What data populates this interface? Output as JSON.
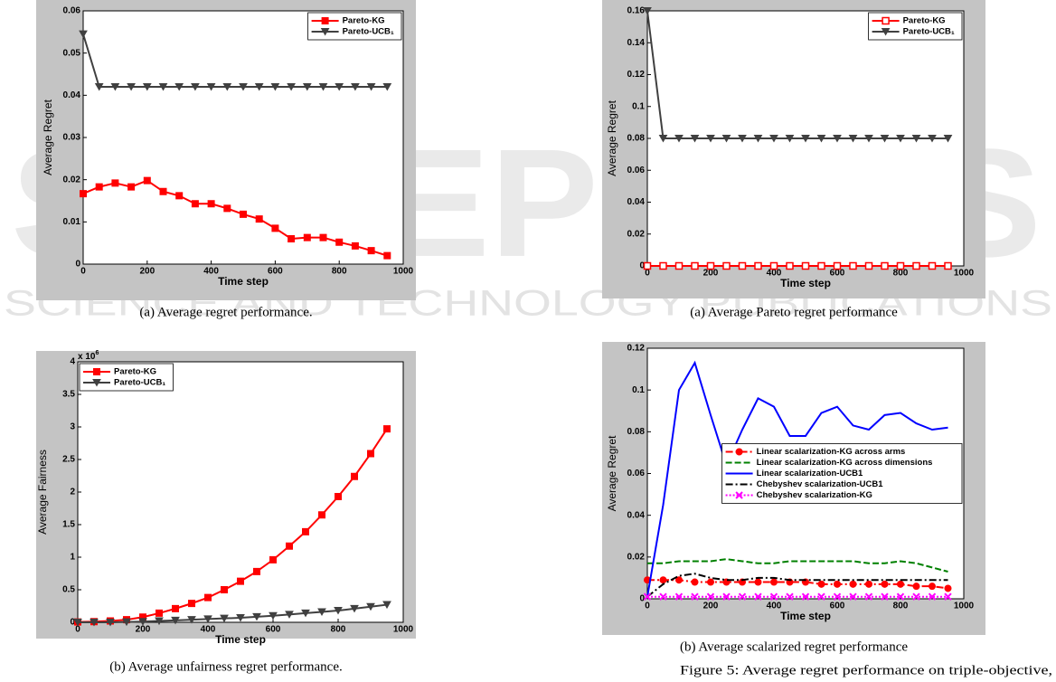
{
  "watermark": [
    "SCITEPRESS",
    "SCIENCE AND TECHNOLOGY PUBLICATIONS"
  ],
  "figure_caption": "Figure 5: Average regret performance on triple-objective,",
  "chart_data": [
    {
      "type": "line",
      "caption": "(a) Average regret performance.",
      "x_label": "Time step",
      "y_label": "Average Regret",
      "x": [
        0,
        50,
        100,
        150,
        200,
        250,
        300,
        350,
        400,
        450,
        500,
        550,
        600,
        650,
        700,
        750,
        800,
        850,
        900,
        950
      ],
      "xlim": [
        0,
        1000
      ],
      "xticks": [
        0,
        200,
        400,
        600,
        800,
        1000
      ],
      "ylim": [
        0,
        0.06
      ],
      "yticks": [
        0,
        0.01,
        0.02,
        0.03,
        0.04,
        0.05,
        0.06
      ],
      "legend": "upper right",
      "series": [
        {
          "name": "Pareto-KG",
          "color": "#ff0000",
          "marker": "square",
          "dash": "solid",
          "values": [
            0.0167,
            0.0183,
            0.0192,
            0.0183,
            0.0198,
            0.0172,
            0.0162,
            0.0143,
            0.0143,
            0.0132,
            0.0118,
            0.0107,
            0.0085,
            0.006,
            0.0063,
            0.0063,
            0.0052,
            0.0043,
            0.0032,
            0.002
          ]
        },
        {
          "name": "Pareto-UCB₁",
          "color": "#404040",
          "marker": "triangle-down",
          "dash": "solid",
          "values": [
            0.0545,
            0.042,
            0.042,
            0.042,
            0.042,
            0.042,
            0.042,
            0.042,
            0.042,
            0.042,
            0.042,
            0.042,
            0.042,
            0.042,
            0.042,
            0.042,
            0.042,
            0.042,
            0.042,
            0.042
          ]
        }
      ]
    },
    {
      "type": "line",
      "caption": "(a) Average Pareto regret performance",
      "x_label": "Time step",
      "y_label": "Average Regret",
      "x": [
        0,
        50,
        100,
        150,
        200,
        250,
        300,
        350,
        400,
        450,
        500,
        550,
        600,
        650,
        700,
        750,
        800,
        850,
        900,
        950
      ],
      "xlim": [
        0,
        1000
      ],
      "xticks": [
        0,
        200,
        400,
        600,
        800,
        1000
      ],
      "ylim": [
        0,
        0.16
      ],
      "yticks": [
        0,
        0.02,
        0.04,
        0.06,
        0.08,
        0.1,
        0.12,
        0.14,
        0.16
      ],
      "legend": "upper right",
      "series": [
        {
          "name": "Pareto-KG",
          "color": "#ff0000",
          "marker": "square-open",
          "dash": "solid",
          "values": [
            0,
            0,
            0,
            0,
            0,
            0,
            0,
            0,
            0,
            0,
            0,
            0,
            0,
            0,
            0,
            0,
            0,
            0,
            0,
            0
          ]
        },
        {
          "name": "Pareto-UCB₁",
          "color": "#404040",
          "marker": "triangle-down",
          "dash": "solid",
          "values": [
            0.16,
            0.08,
            0.08,
            0.08,
            0.08,
            0.08,
            0.08,
            0.08,
            0.08,
            0.08,
            0.08,
            0.08,
            0.08,
            0.08,
            0.08,
            0.08,
            0.08,
            0.08,
            0.08,
            0.08
          ]
        }
      ]
    },
    {
      "type": "line",
      "caption": "(b) Average unfairness regret performance.",
      "x_label": "Time step",
      "y_label": "Average Fairness",
      "y_multiplier": {
        "base": "x 10",
        "exponent": "6"
      },
      "x": [
        0,
        50,
        100,
        150,
        200,
        250,
        300,
        350,
        400,
        450,
        500,
        550,
        600,
        650,
        700,
        750,
        800,
        850,
        900,
        950
      ],
      "xlim": [
        0,
        1000
      ],
      "xticks": [
        0,
        200,
        400,
        600,
        800,
        1000
      ],
      "ylim": [
        0,
        4
      ],
      "yticks": [
        0,
        0.5,
        1,
        1.5,
        2,
        2.5,
        3,
        3.5,
        4
      ],
      "legend": "upper left",
      "series": [
        {
          "name": "Pareto-KG",
          "color": "#ff0000",
          "marker": "square",
          "dash": "solid",
          "values": [
            0.005,
            0.01,
            0.02,
            0.04,
            0.08,
            0.14,
            0.21,
            0.29,
            0.38,
            0.5,
            0.63,
            0.78,
            0.96,
            1.17,
            1.39,
            1.65,
            1.93,
            2.24,
            2.59,
            2.97
          ]
        },
        {
          "name": "Pareto-UCB₁",
          "color": "#404040",
          "marker": "triangle-down",
          "dash": "solid",
          "values": [
            0,
            0,
            0,
            0.005,
            0.01,
            0.02,
            0.03,
            0.04,
            0.05,
            0.06,
            0.07,
            0.085,
            0.1,
            0.12,
            0.14,
            0.16,
            0.18,
            0.21,
            0.24,
            0.27
          ]
        }
      ]
    },
    {
      "type": "line",
      "caption": "(b) Average scalarized regret performance",
      "x_label": "Time step",
      "y_label": "Average Regret",
      "x": [
        0,
        50,
        100,
        150,
        200,
        250,
        300,
        350,
        400,
        450,
        500,
        550,
        600,
        650,
        700,
        750,
        800,
        850,
        900,
        950
      ],
      "xlim": [
        0,
        1000
      ],
      "xticks": [
        0,
        200,
        400,
        600,
        800,
        1000
      ],
      "ylim": [
        0,
        0.12
      ],
      "yticks": [
        0,
        0.02,
        0.04,
        0.06,
        0.08,
        0.1,
        0.12
      ],
      "legend": "center right",
      "series": [
        {
          "name": "Linear scalarization-KG across arms",
          "color": "#ff0000",
          "marker": "circle",
          "dash": "dashdot",
          "values": [
            0.009,
            0.009,
            0.009,
            0.008,
            0.008,
            0.008,
            0.008,
            0.008,
            0.008,
            0.008,
            0.008,
            0.007,
            0.007,
            0.007,
            0.007,
            0.007,
            0.007,
            0.006,
            0.006,
            0.005
          ]
        },
        {
          "name": "Linear scalarization-KG across dimensions",
          "color": "#008000",
          "marker": "none",
          "dash": "dashed",
          "values": [
            0.017,
            0.017,
            0.018,
            0.018,
            0.018,
            0.019,
            0.018,
            0.017,
            0.017,
            0.018,
            0.018,
            0.018,
            0.018,
            0.018,
            0.017,
            0.017,
            0.018,
            0.017,
            0.015,
            0.013
          ]
        },
        {
          "name": "Linear scalarization-UCB1",
          "color": "#0000ff",
          "marker": "none",
          "dash": "solid",
          "values": [
            0.001,
            0.045,
            0.1,
            0.113,
            0.088,
            0.064,
            0.081,
            0.096,
            0.092,
            0.078,
            0.078,
            0.089,
            0.092,
            0.083,
            0.081,
            0.088,
            0.089,
            0.084,
            0.081,
            0.082
          ]
        },
        {
          "name": "Chebyshev scalarization-UCB1",
          "color": "#000000",
          "marker": "none",
          "dash": "dashdot",
          "values": [
            0.001,
            0.007,
            0.011,
            0.012,
            0.01,
            0.009,
            0.009,
            0.01,
            0.01,
            0.009,
            0.009,
            0.009,
            0.009,
            0.009,
            0.009,
            0.009,
            0.009,
            0.009,
            0.009,
            0.009
          ]
        },
        {
          "name": "Chebyshev scalarization-KG",
          "color": "#ff00ff",
          "marker": "x",
          "dash": "dotted",
          "values": [
            0.001,
            0.001,
            0.001,
            0.001,
            0.001,
            0.001,
            0.001,
            0.001,
            0.001,
            0.001,
            0.001,
            0.001,
            0.001,
            0.001,
            0.001,
            0.001,
            0.001,
            0.001,
            0.001,
            0.001
          ]
        }
      ]
    }
  ]
}
